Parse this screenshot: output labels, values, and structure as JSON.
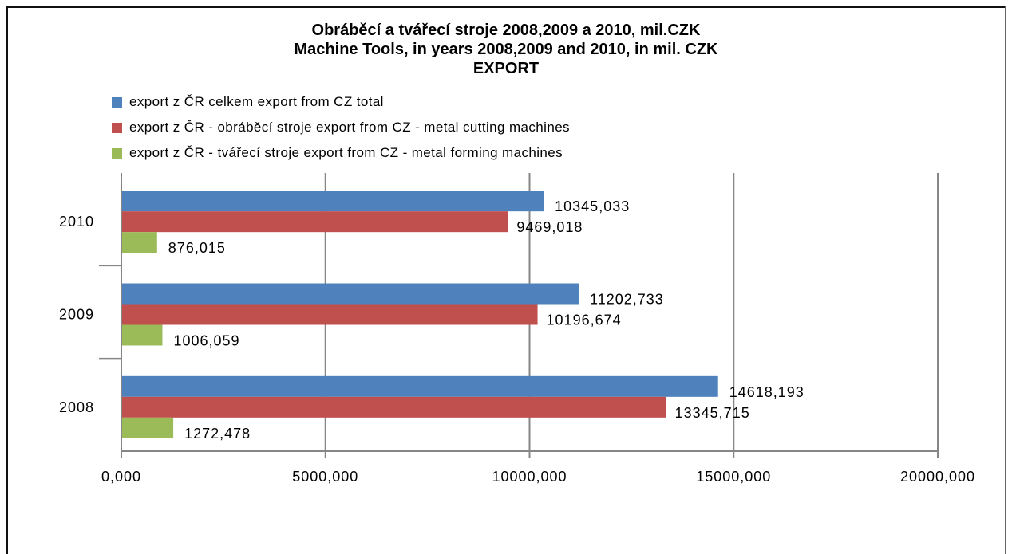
{
  "chart_data": {
    "type": "bar",
    "orientation": "horizontal",
    "title_lines": [
      "Obráběcí a tvářecí stroje 2008,2009 a 2010, mil.CZK",
      "Machine Tools, in years 2008,2009 and 2010, in mil. CZK",
      "EXPORT"
    ],
    "categories": [
      "2010",
      "2009",
      "2008"
    ],
    "series": [
      {
        "name": "export z ČR celkem export from CZ total",
        "color": "#4F81BD",
        "values": [
          10345.033,
          11202.733,
          14618.193
        ],
        "labels": [
          "10345,033",
          "11202,733",
          "14618,193"
        ]
      },
      {
        "name": "export z ČR - obráběcí stroje export from CZ - metal  cutting machines",
        "color": "#C0504D",
        "values": [
          9469.018,
          10196.674,
          13345.715
        ],
        "labels": [
          "9469,018",
          "10196,674",
          "13345,715"
        ]
      },
      {
        "name": "export z ČR - tvářecí stroje export from CZ - metal forming machines",
        "color": "#9BBB59",
        "values": [
          876.015,
          1006.059,
          1272.478
        ],
        "labels": [
          "876,015",
          "1006,059",
          "1272,478"
        ]
      }
    ],
    "x_ticks": [
      0,
      5000,
      10000,
      15000,
      20000
    ],
    "x_tick_labels": [
      "0,000",
      "5000,000",
      "10000,000",
      "15000,000",
      "20000,000"
    ],
    "xlim": [
      0,
      20000
    ],
    "grid": true,
    "legend_position": "top"
  }
}
